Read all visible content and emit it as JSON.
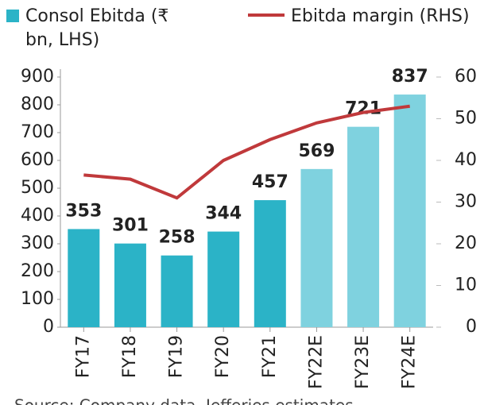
{
  "chart_data": {
    "type": "bar_line",
    "categories": [
      "FY17",
      "FY18",
      "FY19",
      "FY20",
      "FY21",
      "FY22E",
      "FY23E",
      "FY24E"
    ],
    "series": [
      {
        "name": "Consol Ebitda (₹ bn, LHS)",
        "type": "bar",
        "color": "#2bb3c7",
        "colors": [
          "#2bb3c7",
          "#2bb3c7",
          "#2bb3c7",
          "#2bb3c7",
          "#2bb3c7",
          "#7fd2df",
          "#7fd2df",
          "#7fd2df"
        ],
        "values": [
          353,
          301,
          258,
          344,
          457,
          569,
          721,
          837
        ]
      },
      {
        "name": "Ebitda margin (RHS)",
        "type": "line",
        "axis": "y2",
        "color": "#c0393b",
        "values": [
          36.5,
          35.5,
          31,
          40,
          45,
          49,
          51.5,
          53
        ]
      }
    ],
    "ylim": [
      0,
      900
    ],
    "yticks": [
      0,
      100,
      200,
      300,
      400,
      500,
      600,
      700,
      800,
      900
    ],
    "y2lim": [
      0,
      60
    ],
    "y2ticks": [
      0,
      10,
      20,
      30,
      40,
      50,
      60
    ],
    "note": "Source: Company data, Jefferies estimates"
  }
}
